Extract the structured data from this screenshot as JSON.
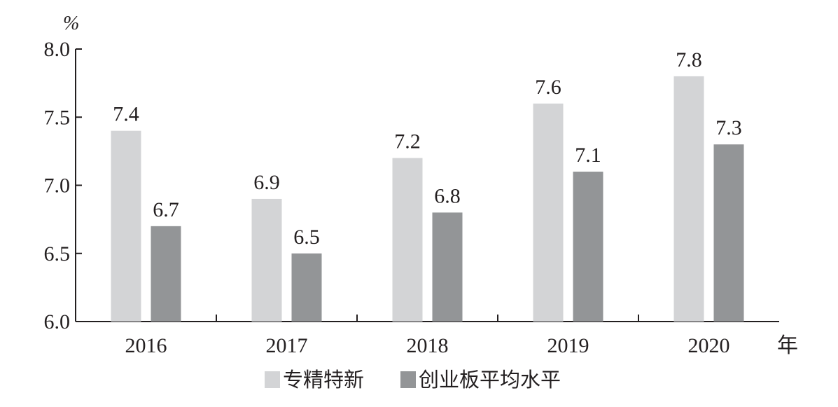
{
  "chart_data": {
    "type": "bar",
    "title": "",
    "ylabel": "%",
    "xlabel": "年",
    "categories": [
      "2016",
      "2017",
      "2018",
      "2019",
      "2020"
    ],
    "series": [
      {
        "name": "专精特新",
        "values": [
          7.4,
          6.9,
          7.2,
          7.6,
          7.8
        ],
        "color": "#d3d4d6"
      },
      {
        "name": "创业板平均水平",
        "values": [
          6.7,
          6.5,
          6.8,
          7.1,
          7.3
        ],
        "color": "#939597"
      }
    ],
    "ylim": [
      6.0,
      8.0
    ],
    "yticks": [
      "6.0",
      "6.5",
      "7.0",
      "7.5",
      "8.0"
    ],
    "grid": false,
    "legend_position": "bottom-center"
  }
}
